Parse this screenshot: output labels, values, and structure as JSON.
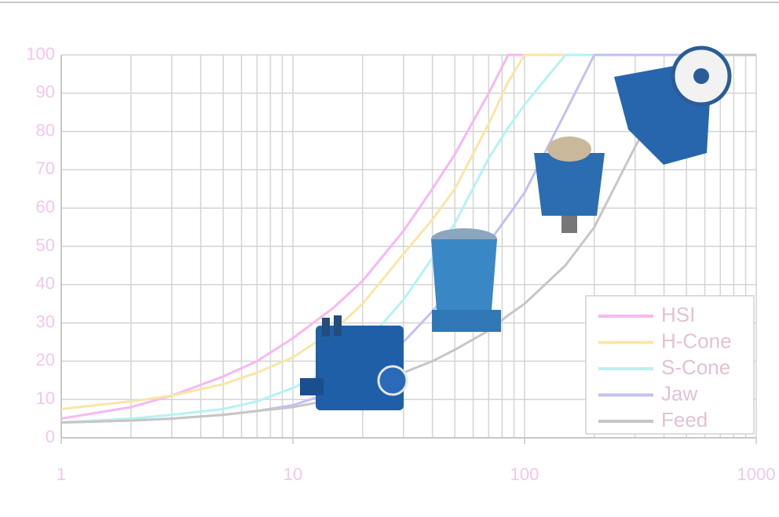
{
  "chart_data": {
    "type": "line",
    "x": [
      1,
      2,
      3,
      5,
      7,
      10,
      15,
      20,
      30,
      40,
      50,
      70,
      85,
      100,
      150,
      200,
      300,
      500,
      1000
    ],
    "series": [
      {
        "name": "HSI",
        "color": "#f7b8f2",
        "values": [
          5,
          8,
          11,
          16,
          20,
          26,
          34,
          41,
          54,
          65,
          74,
          90,
          100,
          100,
          100,
          100,
          100,
          100,
          100
        ]
      },
      {
        "name": "H-Cone",
        "color": "#f9e6a6",
        "values": [
          7.5,
          9.5,
          11,
          14,
          17,
          21,
          28,
          35,
          48,
          57,
          65,
          82,
          93,
          100,
          100,
          100,
          100,
          100,
          100
        ]
      },
      {
        "name": "S-Cone",
        "color": "#b6f2f4",
        "values": [
          4,
          5,
          6,
          7.5,
          9.5,
          13,
          18,
          24,
          36,
          47,
          56,
          73,
          81,
          87,
          100,
          100,
          100,
          100,
          100
        ]
      },
      {
        "name": "Jaw",
        "color": "#c2c0f4",
        "values": [
          4,
          4.5,
          5,
          6,
          7,
          8.5,
          12,
          16,
          25,
          33,
          40,
          51,
          58,
          64,
          85,
          100,
          100,
          100,
          100
        ]
      },
      {
        "name": "Feed",
        "color": "#c6c6c6",
        "values": [
          4,
          4.5,
          5,
          6,
          7,
          8,
          10,
          12,
          17,
          20,
          23,
          28,
          32,
          35,
          45,
          55,
          76,
          100,
          100
        ]
      }
    ],
    "xlim": [
      1,
      1000
    ],
    "xticks": [
      1,
      10,
      100,
      1000
    ],
    "xscale": "log",
    "ylim": [
      0,
      100
    ],
    "yticks": [
      0,
      10,
      20,
      30,
      40,
      50,
      60,
      70,
      80,
      90,
      100
    ],
    "grid": true,
    "legend": "lower right"
  }
}
